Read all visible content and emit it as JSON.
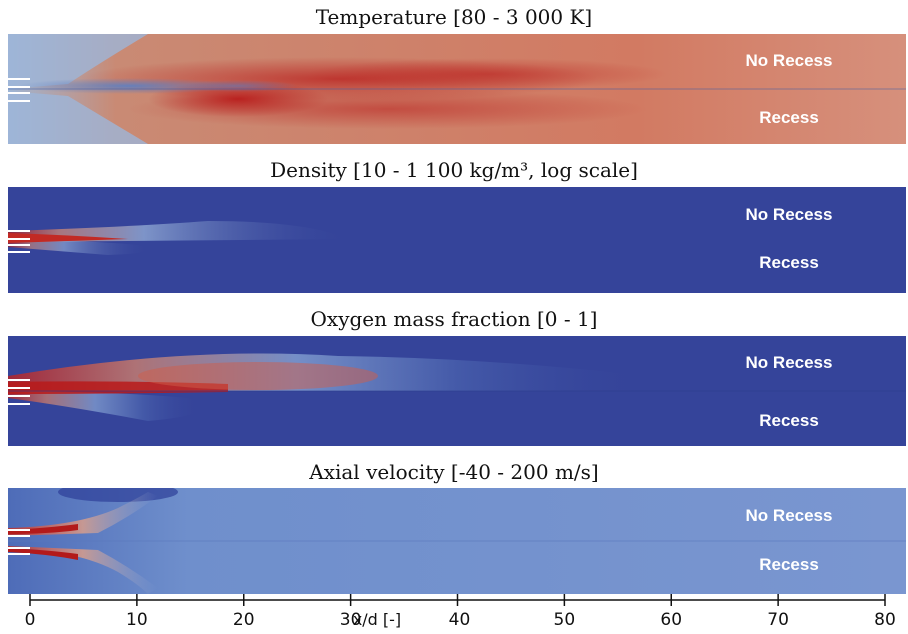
{
  "panels": [
    {
      "title": "Temperature [80 - 3 000 K]",
      "label_top": "No Recess",
      "label_bottom": "Recess"
    },
    {
      "title": "Density [10 - 1 100 kg/m³, log scale]",
      "label_top": "No Recess",
      "label_bottom": "Recess"
    },
    {
      "title": "Oxygen mass fraction [0 - 1]",
      "label_top": "No Recess",
      "label_bottom": "Recess"
    },
    {
      "title": "Axial velocity [-40 - 200 m/s]",
      "label_top": "No Recess",
      "label_bottom": "Recess"
    }
  ],
  "axis": {
    "title": "x/d [-]",
    "ticks": [
      "0",
      "10",
      "20",
      "30",
      "40",
      "50",
      "60",
      "70",
      "80"
    ],
    "range": [
      0,
      80
    ]
  },
  "colors": {
    "low": "#3a4a9c",
    "high": "#b41e1e",
    "temp_bg": "#d27a64"
  }
}
